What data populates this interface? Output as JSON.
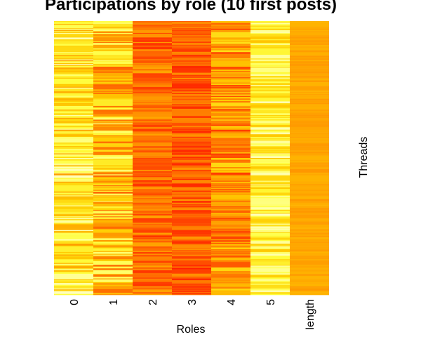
{
  "chart_data": {
    "type": "heatmap",
    "title": "Participations by role (10 first posts)",
    "xlabel": "Roles",
    "ylabel": "Threads",
    "columns": [
      "0",
      "1",
      "2",
      "3",
      "4",
      "5",
      "length"
    ],
    "n_rows": 300,
    "colormap": "heat",
    "colors": {
      "low": "#ff2000",
      "mid_low": "#ff6000",
      "mid": "#ff9a00",
      "mid_high": "#ffcc00",
      "high": "#ffff40",
      "top": "#ffffc0"
    },
    "column_mean_intensity": [
      0.7,
      0.55,
      0.25,
      0.2,
      0.38,
      0.78,
      0.45
    ],
    "column_spread": [
      0.3,
      0.35,
      0.2,
      0.2,
      0.3,
      0.22,
      0.06
    ]
  }
}
